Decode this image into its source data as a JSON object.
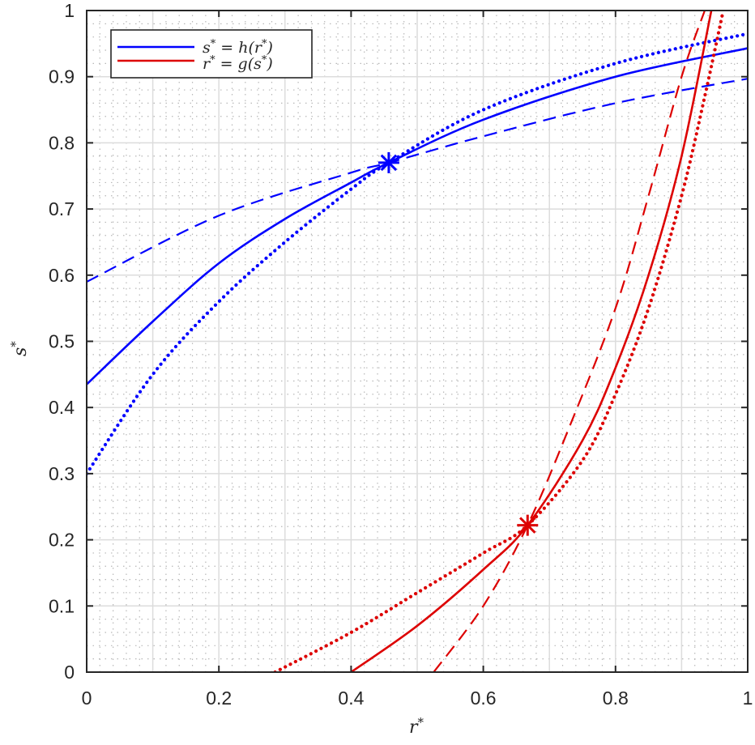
{
  "chart_data": {
    "type": "line",
    "title": "",
    "xlabel": "r*",
    "ylabel": "s*",
    "xlim": [
      0,
      1
    ],
    "ylim": [
      0,
      1
    ],
    "grid": {
      "major": true,
      "minor": true
    },
    "xticks": [
      "0",
      "0.2",
      "0.4",
      "0.6",
      "0.8",
      "1"
    ],
    "yticks": [
      "0",
      "0.1",
      "0.2",
      "0.3",
      "0.4",
      "0.5",
      "0.6",
      "0.7",
      "0.8",
      "0.9",
      "1"
    ],
    "legend": {
      "position": "upper-left",
      "entries": [
        {
          "label": "s* = h(r*)",
          "color": "#0000ff"
        },
        {
          "label": "r* = g(s*)",
          "color": "#dd0000"
        }
      ]
    },
    "series": [
      {
        "name": "s* = h(r*) (solid)",
        "color": "#0000ff",
        "style": "solid",
        "x": [
          0,
          0.1,
          0.2,
          0.3,
          0.4,
          0.457,
          0.6,
          0.8,
          1.0
        ],
        "y": [
          0.435,
          0.53,
          0.618,
          0.685,
          0.74,
          0.77,
          0.835,
          0.9,
          0.943
        ]
      },
      {
        "name": "s* = h(r*) (dotted)",
        "color": "#0000ff",
        "style": "dotted",
        "x": [
          0,
          0.1,
          0.2,
          0.3,
          0.4,
          0.457,
          0.6,
          0.8,
          1.0
        ],
        "y": [
          0.3,
          0.45,
          0.56,
          0.65,
          0.73,
          0.77,
          0.85,
          0.92,
          0.965
        ]
      },
      {
        "name": "s* = h(r*) (dashed)",
        "color": "#0000ff",
        "style": "dashed",
        "x": [
          0,
          0.2,
          0.4,
          0.457,
          0.6,
          0.8,
          1.0
        ],
        "y": [
          0.59,
          0.69,
          0.755,
          0.77,
          0.81,
          0.86,
          0.897
        ]
      },
      {
        "name": "r* = g(s*) (solid)",
        "color": "#dd0000",
        "style": "solid",
        "x": [
          0.4,
          0.5,
          0.6,
          0.667,
          0.75,
          0.8,
          0.85,
          0.9,
          0.945
        ],
        "y": [
          0,
          0.07,
          0.155,
          0.222,
          0.35,
          0.46,
          0.6,
          0.78,
          1.0
        ]
      },
      {
        "name": "r* = g(s*) (dotted)",
        "color": "#dd0000",
        "style": "dotted",
        "x": [
          0.285,
          0.4,
          0.5,
          0.6,
          0.667,
          0.75,
          0.8,
          0.85,
          0.9,
          0.935,
          0.963
        ],
        "y": [
          0,
          0.06,
          0.12,
          0.18,
          0.222,
          0.32,
          0.42,
          0.55,
          0.72,
          0.87,
          1.0
        ]
      },
      {
        "name": "r* = g(s*) (dashed)",
        "color": "#dd0000",
        "style": "dashed",
        "x": [
          0.525,
          0.6,
          0.667,
          0.73,
          0.8,
          0.85,
          0.9,
          0.935
        ],
        "y": [
          0,
          0.1,
          0.222,
          0.37,
          0.55,
          0.72,
          0.9,
          1.0
        ]
      }
    ],
    "markers": [
      {
        "name": "h fixed point",
        "x": 0.457,
        "y": 0.77,
        "symbol": "asterisk",
        "color": "#0000ff"
      },
      {
        "name": "g fixed point",
        "x": 0.667,
        "y": 0.222,
        "symbol": "asterisk",
        "color": "#dd0000"
      }
    ]
  },
  "legend_labels": {
    "h": {
      "lhs": "s",
      "rhs": "= h(r",
      "close": ")"
    },
    "g": {
      "lhs": "r",
      "rhs": "= g(s",
      "close": ")"
    }
  },
  "axes": {
    "xlabel_base": "r",
    "ylabel_base": "s",
    "star": "*"
  }
}
